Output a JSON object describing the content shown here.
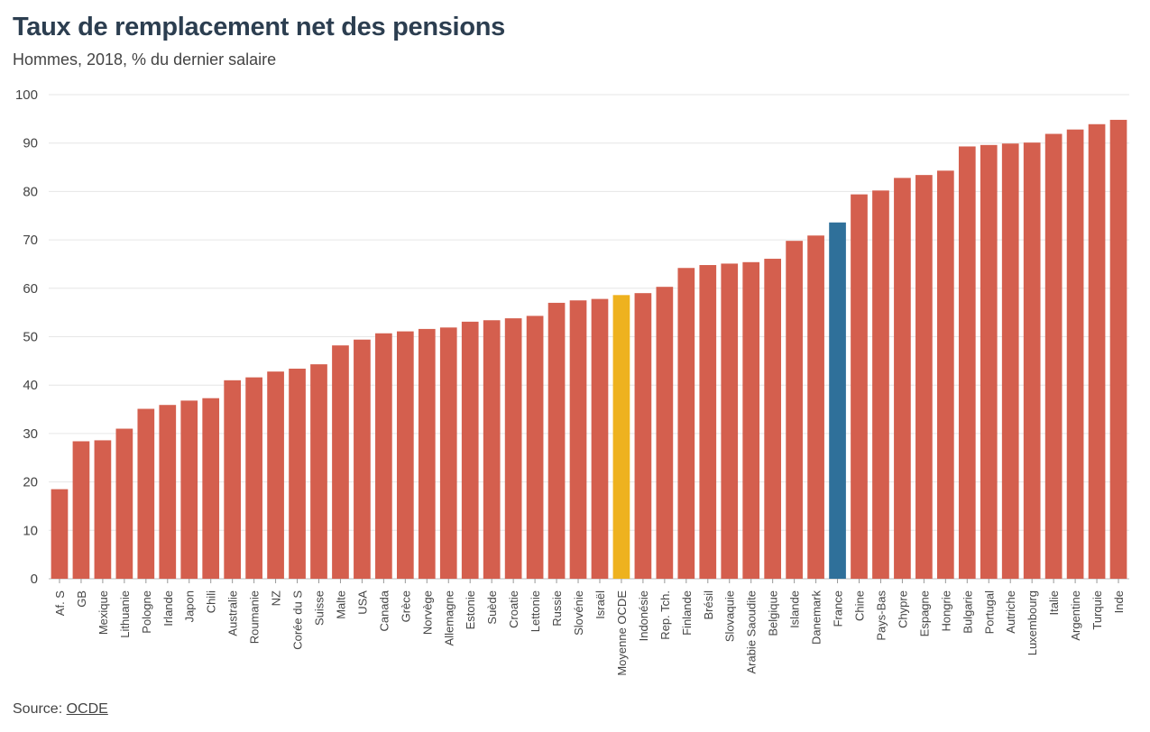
{
  "title": "Taux de remplacement net des pensions",
  "subtitle": "Hommes, 2018, % du dernier salaire",
  "source_label": "Source:",
  "source_link": "OCDE",
  "colors": {
    "default": "#d45f4e",
    "highlight_oecd": "#eeb21f",
    "highlight_france": "#2f709a",
    "grid": "#e6e6e6",
    "axis": "#444444"
  },
  "chart_data": {
    "type": "bar",
    "title": "Taux de remplacement net des pensions",
    "subtitle": "Hommes, 2018, % du dernier salaire",
    "xlabel": "",
    "ylabel": "",
    "ylim": [
      0,
      100
    ],
    "yticks": [
      0,
      10,
      20,
      30,
      40,
      50,
      60,
      70,
      80,
      90,
      100
    ],
    "grid": true,
    "categories": [
      "Af. S",
      "GB",
      "Mexique",
      "Lithuanie",
      "Pologne",
      "Irlande",
      "Japon",
      "Chili",
      "Australie",
      "Roumanie",
      "NZ",
      "Corée du S",
      "Suisse",
      "Malte",
      "USA",
      "Canada",
      "Grèce",
      "Norvège",
      "Allemagne",
      "Estonie",
      "Suède",
      "Croatie",
      "Lettonie",
      "Russie",
      "Slovénie",
      "Israël",
      "Moyenne OCDE",
      "Indonésie",
      "Rep. Tch.",
      "Finlande",
      "Brésil",
      "Slovaquie",
      "Arabie Saoudite",
      "Belgique",
      "Islande",
      "Danemark",
      "France",
      "Chine",
      "Pays-Bas",
      "Chypre",
      "Espagne",
      "Hongrie",
      "Bulgarie",
      "Portugal",
      "Autriche",
      "Luxembourg",
      "Italie",
      "Argentine",
      "Turquie",
      "Inde"
    ],
    "values": [
      18.5,
      28.4,
      28.6,
      31.0,
      35.1,
      35.9,
      36.8,
      37.3,
      41.0,
      41.6,
      42.8,
      43.4,
      44.3,
      48.2,
      49.4,
      50.7,
      51.1,
      51.6,
      51.9,
      53.1,
      53.4,
      53.8,
      54.3,
      57.0,
      57.5,
      57.8,
      58.6,
      59.0,
      60.3,
      64.2,
      64.8,
      65.1,
      65.4,
      66.1,
      69.8,
      70.9,
      73.6,
      79.4,
      80.2,
      82.8,
      83.4,
      84.3,
      89.3,
      89.6,
      89.9,
      90.1,
      91.9,
      92.8,
      93.9,
      94.8
    ],
    "highlights": {
      "Moyenne OCDE": "#eeb21f",
      "France": "#2f709a"
    }
  }
}
